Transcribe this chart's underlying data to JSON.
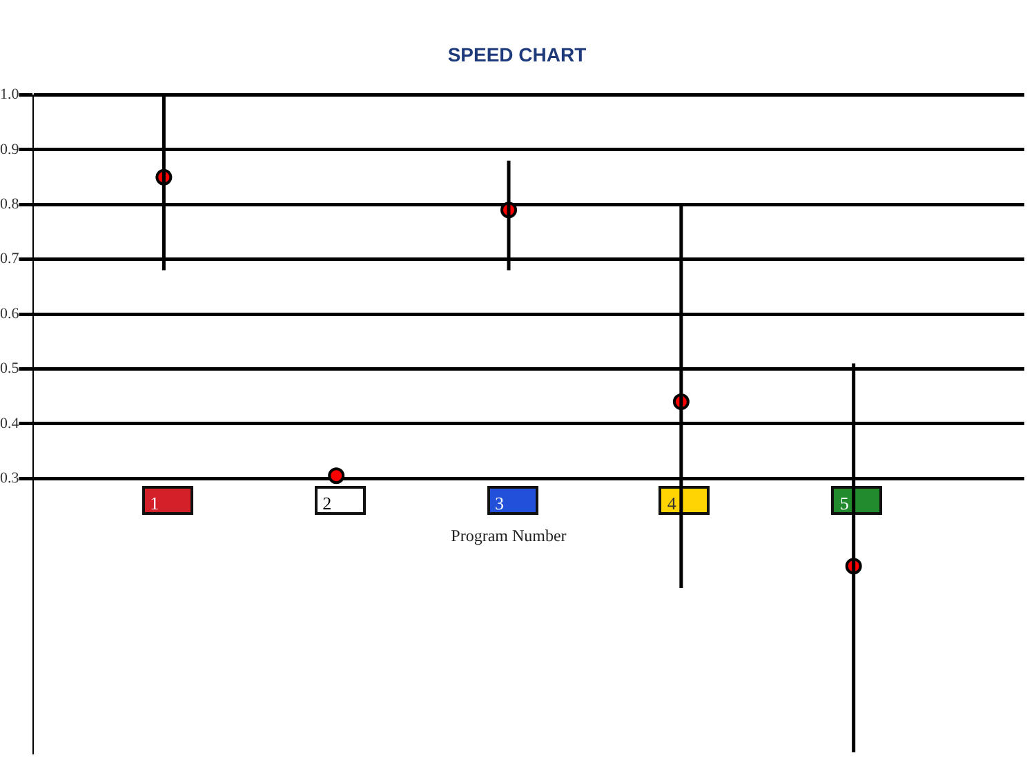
{
  "chart_data": {
    "type": "scatter",
    "title": "SPEED CHART",
    "xlabel": "Program Number",
    "categories": [
      "1",
      "2",
      "3",
      "4",
      "5"
    ],
    "series": [
      {
        "color": "#ff0000",
        "values": [
          0.85,
          0.305,
          0.79,
          0.44,
          0.14
        ],
        "errors": [
          [
            0.68,
            1.0
          ],
          null,
          [
            0.68,
            0.88
          ],
          [
            0.1,
            0.8
          ],
          [
            -0.2,
            0.51
          ]
        ]
      }
    ],
    "ylim": [
      -0.2,
      1.0
    ],
    "yticks": [
      0.3,
      0.4,
      0.5,
      0.6,
      0.7,
      0.8,
      0.9,
      {
        "value": 1.0,
        "label": "1.0"
      }
    ],
    "grid": "y",
    "marker": "circle",
    "legend": false
  }
}
